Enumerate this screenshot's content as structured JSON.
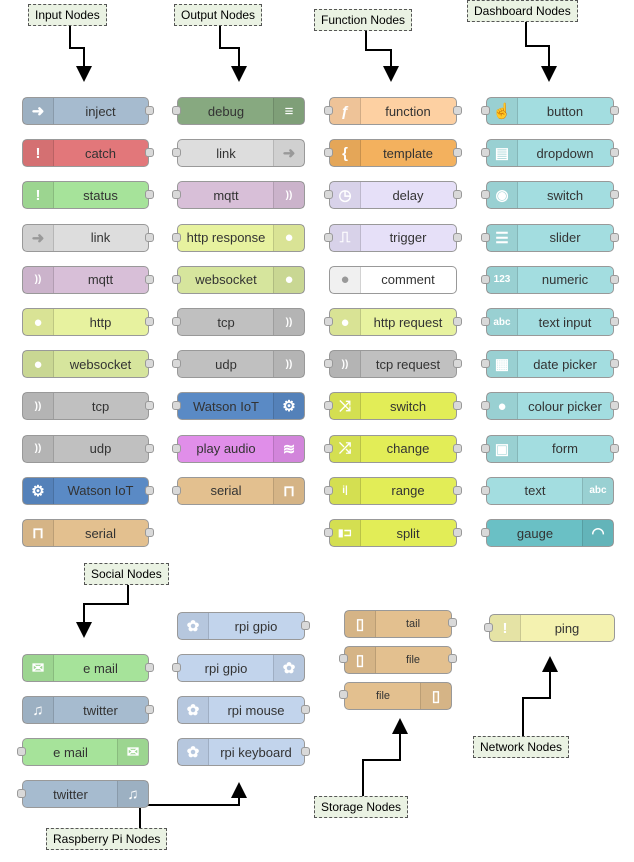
{
  "callouts": {
    "input": "Input Nodes",
    "output": "Output Nodes",
    "function": "Function Nodes",
    "dashboard": "Dashboard Nodes",
    "social": "Social Nodes",
    "raspberry": "Raspberry Pi Nodes",
    "storage": "Storage Nodes",
    "network": "Network Nodes"
  },
  "columns": {
    "input": [
      {
        "label": "inject",
        "color": "#a6bbcf",
        "icon": "arrow-in-icon"
      },
      {
        "label": "catch",
        "color": "#e2777a",
        "icon": "exclamation-icon"
      },
      {
        "label": "status",
        "color": "#a6e39a",
        "icon": "exclamation-icon"
      },
      {
        "label": "link",
        "color": "#dddddd",
        "icon": "link-icon"
      },
      {
        "label": "mqtt",
        "color": "#d8bfd8",
        "icon": "wave-icon"
      },
      {
        "label": "http",
        "color": "#e7f29f",
        "icon": "globe-icon"
      },
      {
        "label": "websocket",
        "color": "#d6e59d",
        "icon": "globe-icon"
      },
      {
        "label": "tcp",
        "color": "#c0c0c0",
        "icon": "wave-icon"
      },
      {
        "label": "udp",
        "color": "#c0c0c0",
        "icon": "wave-icon"
      },
      {
        "label": "Watson IoT",
        "color": "#5a8ac5",
        "icon": "iot-icon"
      },
      {
        "label": "serial",
        "color": "#e3c08f",
        "icon": "serial-icon"
      }
    ],
    "output": [
      {
        "label": "debug",
        "color": "#87a980",
        "icon": "list-icon"
      },
      {
        "label": "link",
        "color": "#dddddd",
        "icon": "link-icon"
      },
      {
        "label": "mqtt",
        "color": "#d8bfd8",
        "icon": "wave-icon"
      },
      {
        "label": "http response",
        "color": "#e7f29f",
        "icon": "globe-icon"
      },
      {
        "label": "websocket",
        "color": "#d6e59d",
        "icon": "globe-icon"
      },
      {
        "label": "tcp",
        "color": "#c0c0c0",
        "icon": "wave-icon"
      },
      {
        "label": "udp",
        "color": "#c0c0c0",
        "icon": "wave-icon"
      },
      {
        "label": "Watson IoT",
        "color": "#5a8ac5",
        "icon": "iot-icon"
      },
      {
        "label": "play audio",
        "color": "#e08ee9",
        "icon": "audio-icon"
      },
      {
        "label": "serial",
        "color": "#e3c08f",
        "icon": "serial-icon"
      }
    ],
    "function": [
      {
        "label": "function",
        "color": "#fdd0a2",
        "icon": "function-icon"
      },
      {
        "label": "template",
        "color": "#f3b15e",
        "icon": "brace-icon"
      },
      {
        "label": "delay",
        "color": "#e6e0f8",
        "icon": "timer-icon"
      },
      {
        "label": "trigger",
        "color": "#e6e0f8",
        "icon": "trigger-icon"
      },
      {
        "label": "comment",
        "color": "#ffffff",
        "icon": "comment-icon"
      },
      {
        "label": "http request",
        "color": "#e7f29f",
        "icon": "globe-icon"
      },
      {
        "label": "tcp request",
        "color": "#c0c0c0",
        "icon": "wave-icon"
      },
      {
        "label": "switch",
        "color": "#e2ed57",
        "icon": "switch-icon"
      },
      {
        "label": "change",
        "color": "#e2ed57",
        "icon": "shuffle-icon"
      },
      {
        "label": "range",
        "color": "#e2ed57",
        "icon": "range-icon"
      },
      {
        "label": "split",
        "color": "#e2ed57",
        "icon": "split-icon"
      }
    ],
    "dashboard": [
      {
        "label": "button",
        "color": "#a3dde0",
        "icon": "hand-icon"
      },
      {
        "label": "dropdown",
        "color": "#a3dde0",
        "icon": "dropdown-icon"
      },
      {
        "label": "switch",
        "color": "#a3dde0",
        "icon": "toggle-icon"
      },
      {
        "label": "slider",
        "color": "#a3dde0",
        "icon": "slider-icon"
      },
      {
        "label": "numeric",
        "color": "#a3dde0",
        "icon": "numeric-icon"
      },
      {
        "label": "text input",
        "color": "#a3dde0",
        "icon": "text-icon"
      },
      {
        "label": "date picker",
        "color": "#a3dde0",
        "icon": "calendar-icon"
      },
      {
        "label": "colour picker",
        "color": "#a3dde0",
        "icon": "palette-icon"
      },
      {
        "label": "form",
        "color": "#a3dde0",
        "icon": "form-icon"
      },
      {
        "label": "text",
        "color": "#a3dde0",
        "icon": "text-icon"
      },
      {
        "label": "gauge",
        "color": "#6ac0c5",
        "icon": "gauge-icon"
      }
    ],
    "social": [
      {
        "label": "e mail",
        "color": "#a6e39a",
        "icon": "mail-icon"
      },
      {
        "label": "twitter",
        "color": "#a6bbcf",
        "icon": "bird-icon"
      },
      {
        "label": "e mail",
        "color": "#a6e39a",
        "icon": "mail-icon"
      },
      {
        "label": "twitter",
        "color": "#a6bbcf",
        "icon": "bird-icon"
      }
    ],
    "raspberry": [
      {
        "label": "rpi gpio",
        "color": "#c2d4ec",
        "icon": "rpi-icon"
      },
      {
        "label": "rpi gpio",
        "color": "#c2d4ec",
        "icon": "rpi-icon"
      },
      {
        "label": "rpi mouse",
        "color": "#c2d4ec",
        "icon": "rpi-icon"
      },
      {
        "label": "rpi keyboard",
        "color": "#c2d4ec",
        "icon": "rpi-icon"
      }
    ],
    "storage": [
      {
        "label": "tail",
        "color": "#e3c08f",
        "icon": "file-icon"
      },
      {
        "label": "file",
        "color": "#e3c08f",
        "icon": "file-icon"
      },
      {
        "label": "file",
        "color": "#e3c08f",
        "icon": "file-icon"
      }
    ],
    "network": [
      {
        "label": "ping",
        "color": "#f4f2b0",
        "icon": "exclamation-icon"
      }
    ]
  }
}
